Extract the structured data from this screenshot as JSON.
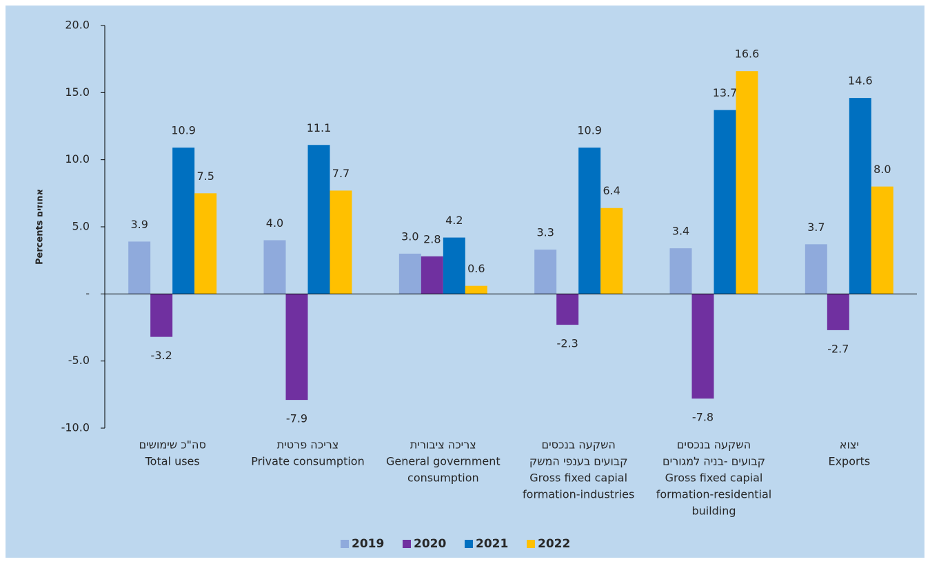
{
  "chart_data": {
    "type": "bar",
    "ylabel": "Percents אחוזים",
    "categories": [
      [
        "סה\"כ שימושים",
        "Total uses"
      ],
      [
        "צריכה פרטית",
        "Private consumption"
      ],
      [
        "צריכה ציבורית",
        "General government",
        "consumption"
      ],
      [
        "השקעה בנכסים",
        "קבועים בענפי המשק",
        "Gross fixed capial",
        "formation-industries"
      ],
      [
        "השקעה בנכסים",
        "קבועים -בניה למגורים",
        "Gross fixed capial",
        "formation-residential",
        "building"
      ],
      [
        "יצוא",
        "Exports"
      ]
    ],
    "series": [
      {
        "name": "2019",
        "color": "#8faadc",
        "values": [
          3.9,
          4.0,
          3.0,
          3.3,
          3.4,
          3.7
        ],
        "value_labels": [
          "3.9",
          "4.0",
          "3.0",
          "3.3",
          "3.4",
          "3.7"
        ]
      },
      {
        "name": "2020",
        "color": "#7030a0",
        "values": [
          -3.2,
          -7.9,
          2.8,
          -2.3,
          -7.8,
          -2.7
        ],
        "value_labels": [
          "-3.2",
          "-7.9",
          "2.8",
          "-2.3",
          "-7.8",
          "-2.7"
        ]
      },
      {
        "name": "2021",
        "color": "#0070c0",
        "values": [
          10.9,
          11.1,
          4.2,
          10.9,
          13.7,
          14.6
        ],
        "value_labels": [
          "10.9",
          "11.1",
          "4.2",
          "10.9",
          "13.7",
          "14.6"
        ]
      },
      {
        "name": "2022",
        "color": "#ffc000",
        "values": [
          7.5,
          7.7,
          0.6,
          6.4,
          16.6,
          8.0
        ],
        "value_labels": [
          "7.5",
          "7.7",
          "0.6",
          "6.4",
          "16.6",
          "8.0"
        ]
      }
    ],
    "ylim": [
      -10,
      20
    ],
    "yticks": [
      {
        "value": 20,
        "label": "20.0"
      },
      {
        "value": 15,
        "label": "15.0"
      },
      {
        "value": 10,
        "label": "10.0"
      },
      {
        "value": 5,
        "label": "5.0"
      },
      {
        "value": 0,
        "label": "-"
      },
      {
        "value": -5,
        "label": "-5.0"
      },
      {
        "value": -10,
        "label": "-10.0"
      }
    ],
    "legend": "bottom"
  }
}
